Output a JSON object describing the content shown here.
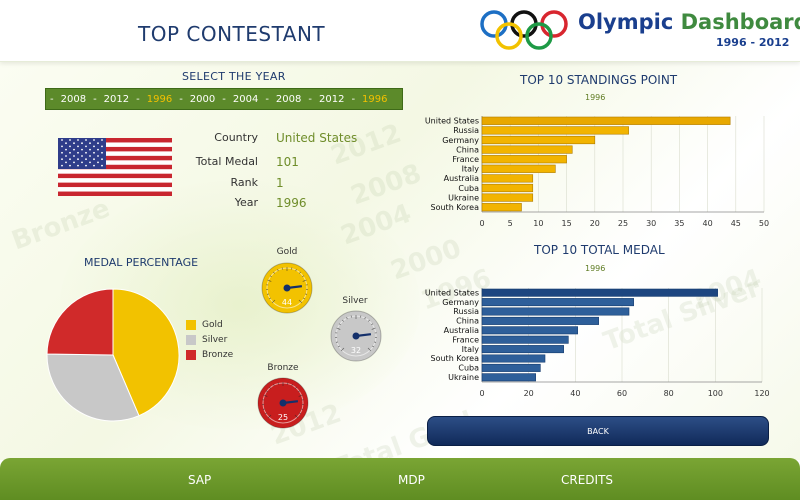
{
  "header": {
    "title": "TOP CONTESTANT",
    "brand_word1": "Olympic",
    "brand_word2": "Dashboard",
    "brand_years": "1996 - 2012"
  },
  "year_selector": {
    "label": "SELECT THE YEAR",
    "years": [
      "2008",
      "2012",
      "1996",
      "2000",
      "2004",
      "2008",
      "2012",
      "1996"
    ],
    "selected": "1996"
  },
  "contestant": {
    "country_label": "Country",
    "country_value": "United States",
    "total_medal_label": "Total Medal",
    "total_medal_value": "101",
    "rank_label": "Rank",
    "rank_value": "1",
    "year_label": "Year",
    "year_value": "1996"
  },
  "medal_percentage": {
    "title": "MEDAL PERCENTAGE",
    "legend": [
      {
        "name": "Gold",
        "color": "#f2c200"
      },
      {
        "name": "Silver",
        "color": "#c8c8c8"
      },
      {
        "name": "Bronze",
        "color": "#d02a2a"
      }
    ]
  },
  "gauges": [
    {
      "name": "Gold",
      "value": "44",
      "color": "#f2c200"
    },
    {
      "name": "Silver",
      "value": "32",
      "color": "#c8c8c8"
    },
    {
      "name": "Bronze",
      "value": "25",
      "color": "#c81e1e"
    }
  ],
  "chart_data": [
    {
      "type": "pie",
      "title": "MEDAL PERCENTAGE",
      "categories": [
        "Gold",
        "Silver",
        "Bronze"
      ],
      "values": [
        44,
        32,
        25
      ],
      "colors": [
        "#f2c200",
        "#c8c8c8",
        "#d02a2a"
      ]
    },
    {
      "type": "bar",
      "orientation": "horizontal",
      "title": "TOP 10 STANDINGS POINT",
      "subtitle": "1996",
      "categories": [
        "United States",
        "Russia",
        "Germany",
        "China",
        "France",
        "Italy",
        "Australia",
        "Cuba",
        "Ukraine",
        "South Korea"
      ],
      "values": [
        44,
        26,
        20,
        16,
        15,
        13,
        9,
        9,
        9,
        7
      ],
      "xlim": [
        0,
        50
      ],
      "xticks": [
        "0",
        "5",
        "10",
        "15",
        "20",
        "25",
        "30",
        "35",
        "40",
        "45",
        "50"
      ],
      "color": "#f2b400",
      "grid": true
    },
    {
      "type": "bar",
      "orientation": "horizontal",
      "title": "TOP 10 TOTAL MEDAL",
      "subtitle": "1996",
      "categories": [
        "United States",
        "Germany",
        "Russia",
        "China",
        "Australia",
        "France",
        "Italy",
        "South Korea",
        "Cuba",
        "Ukraine"
      ],
      "values": [
        101,
        65,
        63,
        50,
        41,
        37,
        35,
        27,
        25,
        23
      ],
      "xlim": [
        0,
        120
      ],
      "xticks": [
        "0",
        "20",
        "40",
        "60",
        "80",
        "100",
        "120"
      ],
      "color": "#2e5f9a",
      "grid": true
    }
  ],
  "back_label": "BACK",
  "footer": {
    "links": [
      "SAP",
      "MDP",
      "CREDITS"
    ]
  },
  "watermarks": [
    "2012",
    "2008",
    "2004",
    "2000",
    "1996",
    "Bronze",
    "Total Silver",
    "Total Gold",
    "2012",
    "2004"
  ]
}
